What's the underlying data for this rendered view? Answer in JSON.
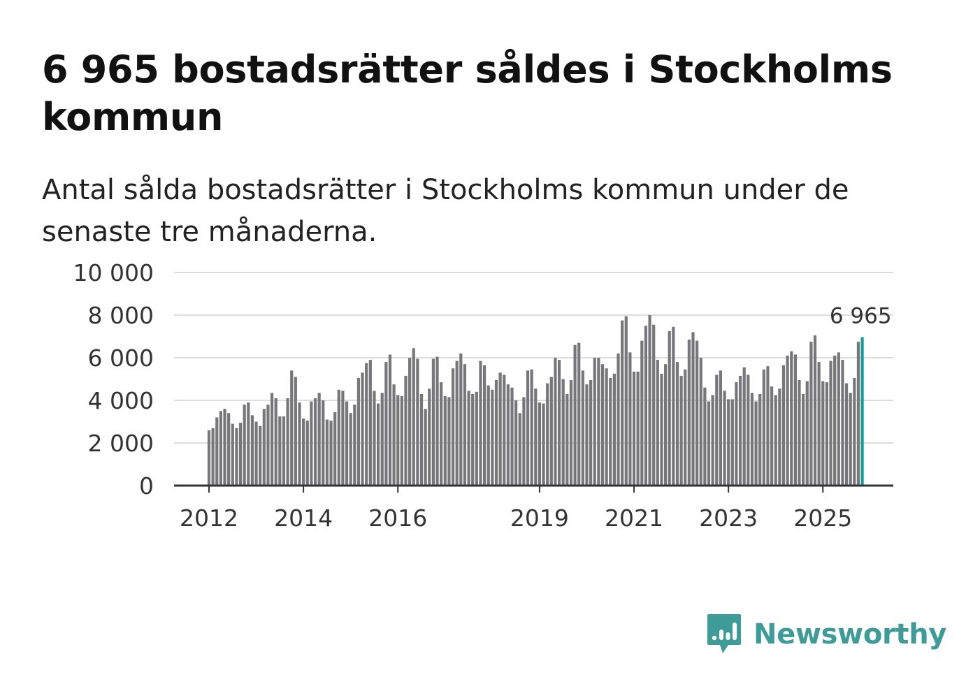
{
  "header": {
    "title": "6 965 bostadsrätter såldes i Stockholms kommun",
    "subtitle": "Antal sålda bostadsrätter i Stockholms kommun under de senaste tre månaderna."
  },
  "brand": {
    "name": "Newsworthy",
    "color": "#3e9c98",
    "icon": "newsworthy-logo-icon"
  },
  "colors": {
    "bar": "#77767b",
    "highlight": "#119e9b",
    "grid": "#dddddd",
    "axis": "#333333"
  },
  "chart_data": {
    "type": "bar",
    "title": "Antal sålda bostadsrätter i Stockholms kommun",
    "xlabel": "",
    "ylabel": "",
    "ylim": [
      0,
      10000
    ],
    "grid": true,
    "y_ticks": [
      {
        "value": 0,
        "label": "0"
      },
      {
        "value": 2000,
        "label": "2 000"
      },
      {
        "value": 4000,
        "label": "4 000"
      },
      {
        "value": 6000,
        "label": "6 000"
      },
      {
        "value": 8000,
        "label": "8 000"
      },
      {
        "value": 10000,
        "label": "10 000"
      }
    ],
    "x_ticks": [
      {
        "label": "2012",
        "index": 0
      },
      {
        "label": "2014",
        "index": 24
      },
      {
        "label": "2016",
        "index": 48
      },
      {
        "label": "2019",
        "index": 84
      },
      {
        "label": "2021",
        "index": 108
      },
      {
        "label": "2023",
        "index": 132
      },
      {
        "label": "2025",
        "index": 156
      }
    ],
    "series": [
      {
        "name": "Sålda bostadsrätter (rullande tre månader)",
        "start": "2012-01",
        "values": [
          2600,
          2700,
          3200,
          3500,
          3600,
          3400,
          2900,
          2700,
          2950,
          3800,
          3900,
          3300,
          3000,
          2800,
          3600,
          3800,
          4350,
          4100,
          3250,
          3250,
          4100,
          5400,
          5100,
          3900,
          3150,
          3050,
          3950,
          4100,
          4350,
          4000,
          3100,
          3050,
          3450,
          4500,
          4450,
          3950,
          3400,
          3800,
          5050,
          5300,
          5750,
          5900,
          4450,
          3850,
          4350,
          5800,
          6150,
          4750,
          4250,
          4200,
          5150,
          6000,
          6450,
          5950,
          4300,
          3600,
          4550,
          5950,
          6050,
          4850,
          4200,
          4150,
          5500,
          5850,
          6200,
          5700,
          4450,
          4300,
          4400,
          5850,
          5650,
          4700,
          4500,
          4950,
          5300,
          5200,
          4750,
          4600,
          4000,
          3400,
          4150,
          5400,
          5450,
          4550,
          3900,
          3850,
          4800,
          5100,
          6000,
          5900,
          5000,
          4300,
          4950,
          6600,
          6700,
          5400,
          4750,
          4950,
          6000,
          6000,
          5700,
          5500,
          5050,
          5250,
          6200,
          7750,
          7950,
          6250,
          5350,
          5350,
          6800,
          7500,
          8000,
          7550,
          5900,
          5250,
          5700,
          7250,
          7450,
          5800,
          5150,
          5450,
          6850,
          7200,
          6800,
          6000,
          4600,
          3950,
          4250,
          5200,
          5400,
          4450,
          4050,
          4050,
          4850,
          5150,
          5550,
          5200,
          4350,
          3950,
          4300,
          5450,
          5600,
          4650,
          4250,
          4550,
          5650,
          6100,
          6300,
          6150,
          4950,
          4300,
          4900,
          6750,
          7050,
          5800,
          4900,
          4850,
          5850,
          6100,
          6250,
          5900,
          4800,
          4350,
          5050,
          6750,
          6965
        ],
        "highlight_last": true,
        "last_label": "6 965"
      }
    ]
  }
}
